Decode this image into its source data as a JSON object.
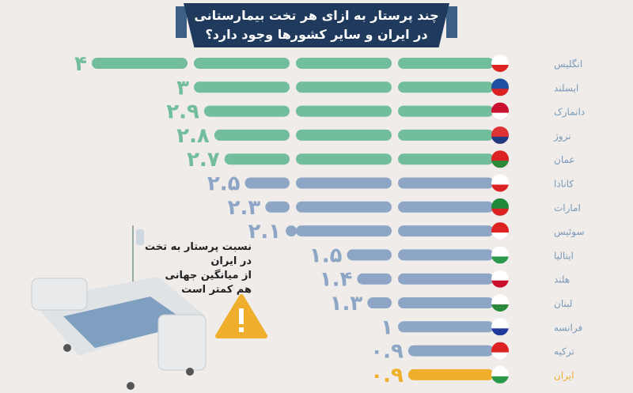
{
  "title": {
    "line1": "چند پرستار به ازای هر تخت بیمارستانی",
    "line2": "در ایران و سایر کشورها وجود دارد؟"
  },
  "note": {
    "lines": [
      "نسبت پرستار به تخت",
      "در ایران",
      "از میانگین جهانی",
      "هم کمتر است"
    ],
    "icon": "warning-triangle-icon"
  },
  "colors": {
    "high": "#72bd9c",
    "mid": "#8ea6c6",
    "iran": "#efae2c",
    "title_bg": "#1f3a5c",
    "background": "#efecea"
  },
  "chart_data": {
    "type": "bar",
    "orientation": "horizontal",
    "grid": false,
    "categories": [
      "انگلیس",
      "ایسلند",
      "دانمارک",
      "نروژ",
      "عمان",
      "کانادا",
      "امارات",
      "سوئیس",
      "ایتالیا",
      "هلند",
      "لبنان",
      "فرانسه",
      "ترکیه",
      "ایران"
    ],
    "values": [
      4,
      3,
      2.9,
      2.8,
      2.7,
      2.5,
      2.3,
      2.1,
      1.5,
      1.4,
      1.3,
      1,
      0.9,
      0.9
    ],
    "value_labels": [
      "۴",
      "۳",
      "۲.۹",
      "۲.۸",
      "۲.۷",
      "۲.۵",
      "۲.۳",
      "۲.۱",
      "۱.۵",
      "۱.۴",
      "۱.۳",
      "۱",
      "۰.۹",
      "۰.۹"
    ],
    "bar_colors": [
      "high",
      "high",
      "high",
      "high",
      "high",
      "mid",
      "mid",
      "mid",
      "mid",
      "mid",
      "mid",
      "mid",
      "mid",
      "iran"
    ],
    "flags": [
      "england",
      "iceland",
      "denmark",
      "norway",
      "oman",
      "canada",
      "uae",
      "switzerland",
      "italy",
      "netherlands",
      "lebanon",
      "france",
      "turkey",
      "iran"
    ],
    "xlim": [
      0,
      4
    ]
  }
}
